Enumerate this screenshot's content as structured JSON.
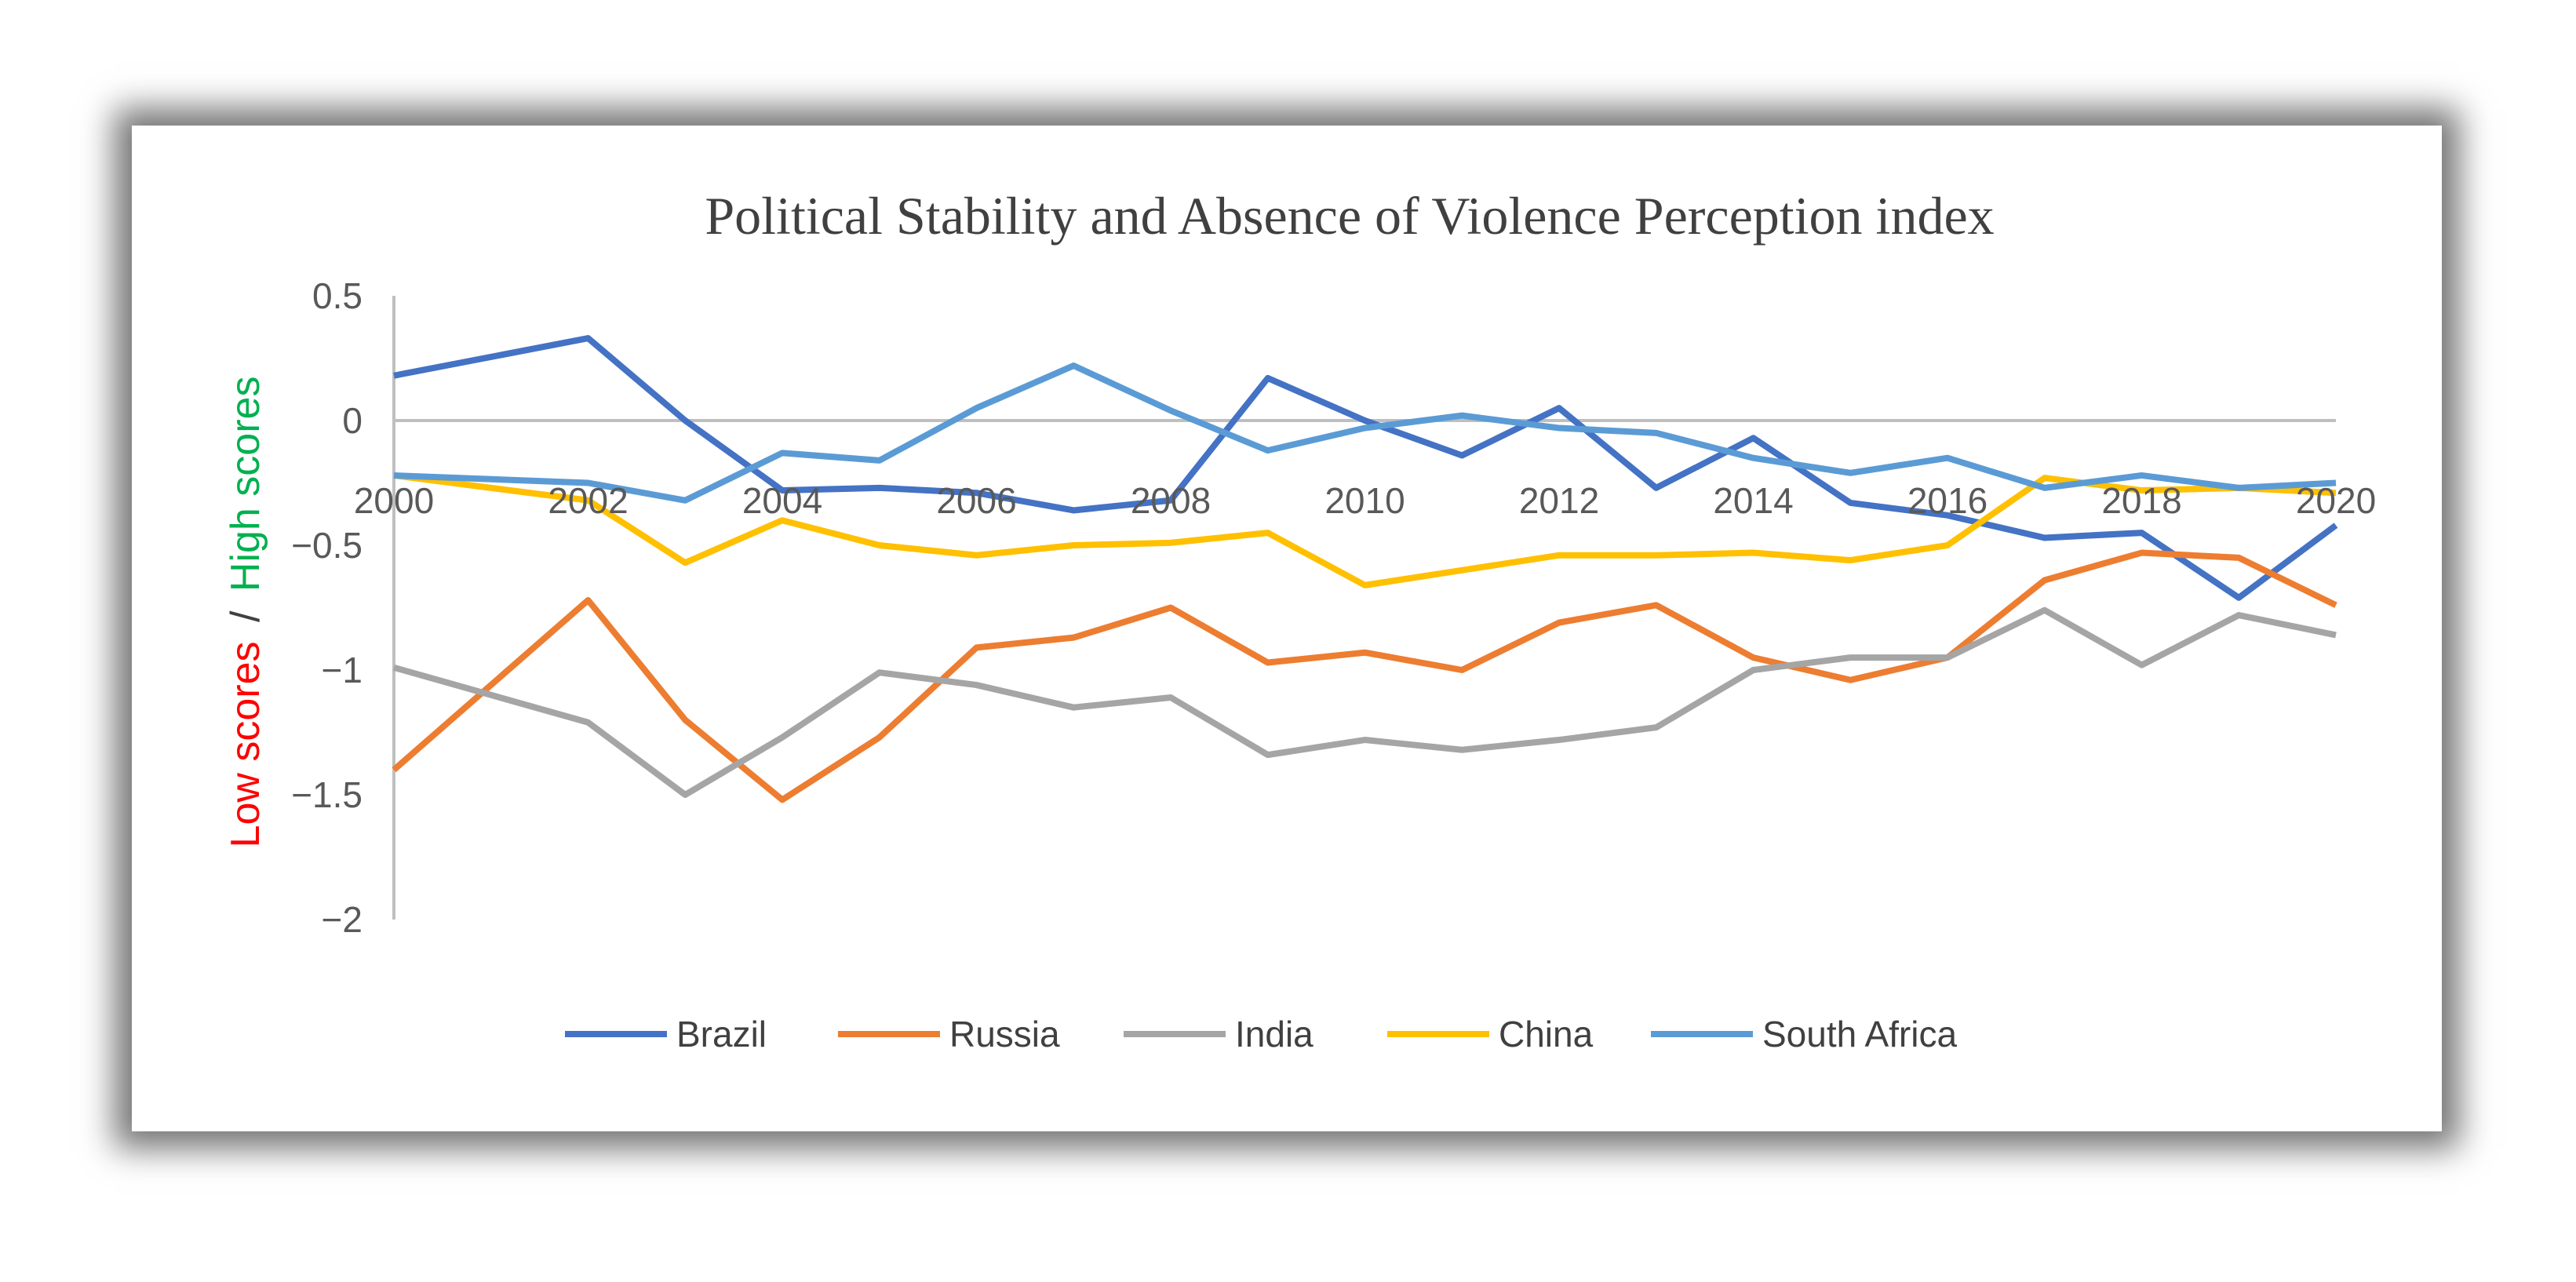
{
  "chart_data": {
    "type": "line",
    "title": "Political Stability and Absence of Violence Perception index",
    "ylabel_low": "Low scores",
    "ylabel_sep": "/",
    "ylabel_high": "High scores",
    "ylabel_low_color": "#ff0000",
    "ylabel_high_color": "#00b050",
    "ylim": [
      -2,
      0.5
    ],
    "yticks": [
      0.5,
      0,
      -0.5,
      -1,
      -1.5,
      -2
    ],
    "ytick_labels": [
      "0.5",
      "0",
      "−0.5",
      "−1",
      "−1.5",
      "−2"
    ],
    "xlim": [
      2000,
      2020
    ],
    "xticks": [
      "2000",
      "2002",
      "2004",
      "2006",
      "2008",
      "2010",
      "2012",
      "2014",
      "2016",
      "2018",
      "2020"
    ],
    "x": [
      2000,
      2002,
      2003,
      2004,
      2005,
      2006,
      2007,
      2008,
      2009,
      2010,
      2011,
      2012,
      2013,
      2014,
      2015,
      2016,
      2017,
      2018,
      2019,
      2020
    ],
    "legend_position": "bottom",
    "series": [
      {
        "name": "Brazil",
        "color": "#4472c4",
        "values": [
          0.18,
          0.33,
          0.0,
          -0.28,
          -0.27,
          -0.29,
          -0.36,
          -0.32,
          0.17,
          0.0,
          -0.14,
          0.05,
          -0.27,
          -0.07,
          -0.33,
          -0.38,
          -0.47,
          -0.45,
          -0.71,
          -0.42
        ]
      },
      {
        "name": "Russia",
        "color": "#ed7d31",
        "values": [
          -1.4,
          -0.72,
          -1.2,
          -1.52,
          -1.27,
          -0.91,
          -0.87,
          -0.75,
          -0.97,
          -0.93,
          -1.0,
          -0.81,
          -0.74,
          -0.95,
          -1.04,
          -0.95,
          -0.64,
          -0.53,
          -0.55,
          -0.74
        ]
      },
      {
        "name": "India",
        "color": "#a5a5a5",
        "values": [
          -0.99,
          -1.21,
          -1.5,
          -1.27,
          -1.01,
          -1.06,
          -1.15,
          -1.11,
          -1.34,
          -1.28,
          -1.32,
          -1.28,
          -1.23,
          -1.0,
          -0.95,
          -0.95,
          -0.76,
          -0.98,
          -0.78,
          -0.86
        ]
      },
      {
        "name": "China",
        "color": "#ffc000",
        "values": [
          -0.22,
          -0.32,
          -0.57,
          -0.4,
          -0.5,
          -0.54,
          -0.5,
          -0.49,
          -0.45,
          -0.66,
          -0.6,
          -0.54,
          -0.54,
          -0.53,
          -0.56,
          -0.5,
          -0.23,
          -0.28,
          -0.27,
          -0.29
        ]
      },
      {
        "name": "South Africa",
        "color": "#5b9bd5",
        "values": [
          -0.22,
          -0.25,
          -0.32,
          -0.13,
          -0.16,
          0.05,
          0.22,
          0.04,
          -0.12,
          -0.03,
          0.02,
          -0.03,
          -0.05,
          -0.15,
          -0.21,
          -0.15,
          -0.27,
          -0.22,
          -0.27,
          -0.25
        ]
      }
    ]
  }
}
